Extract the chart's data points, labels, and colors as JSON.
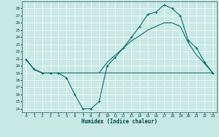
{
  "bg_color": "#c8e8e4",
  "line_color": "#006868",
  "xlabel": "Humidex (Indice chaleur)",
  "xlim": [
    -0.5,
    23.5
  ],
  "ylim": [
    13.5,
    29.0
  ],
  "yticks": [
    14,
    15,
    16,
    17,
    18,
    19,
    20,
    21,
    22,
    23,
    24,
    25,
    26,
    27,
    28
  ],
  "xticks": [
    0,
    1,
    2,
    3,
    4,
    5,
    6,
    7,
    8,
    9,
    10,
    11,
    12,
    13,
    14,
    15,
    16,
    17,
    18,
    19,
    20,
    21,
    22,
    23
  ],
  "line1_x": [
    0,
    1,
    2,
    3,
    4,
    5,
    6,
    7,
    8,
    9,
    10,
    11,
    12,
    13,
    14,
    15,
    16,
    17,
    18,
    19,
    20,
    21,
    22,
    23
  ],
  "line1_y": [
    20.9,
    19.5,
    19.0,
    19.0,
    19.0,
    18.3,
    16.0,
    14.0,
    14.0,
    15.0,
    20.0,
    21.2,
    22.5,
    24.0,
    25.5,
    27.2,
    27.5,
    28.5,
    28.0,
    27.0,
    23.5,
    22.5,
    20.5,
    19.0
  ],
  "line2_x": [
    0,
    1,
    2,
    3,
    4,
    5,
    6,
    7,
    8,
    9,
    10,
    11,
    12,
    13,
    14,
    15,
    16,
    17,
    18,
    19,
    20,
    21,
    22,
    23
  ],
  "line2_y": [
    20.9,
    19.5,
    19.0,
    19.0,
    19.0,
    19.0,
    19.0,
    19.0,
    19.0,
    19.0,
    19.0,
    19.0,
    19.0,
    19.0,
    19.0,
    19.0,
    19.0,
    19.0,
    19.0,
    19.0,
    19.0,
    19.0,
    19.0,
    19.0
  ],
  "line3_x": [
    0,
    1,
    2,
    3,
    4,
    5,
    6,
    7,
    8,
    9,
    10,
    11,
    12,
    13,
    14,
    15,
    16,
    17,
    18,
    19,
    20,
    21,
    22,
    23
  ],
  "line3_y": [
    20.9,
    19.5,
    19.0,
    19.0,
    19.0,
    19.0,
    19.0,
    19.0,
    19.0,
    19.0,
    20.5,
    21.5,
    22.5,
    23.5,
    24.2,
    25.0,
    25.5,
    26.0,
    26.0,
    25.5,
    23.2,
    21.5,
    20.3,
    19.0
  ]
}
